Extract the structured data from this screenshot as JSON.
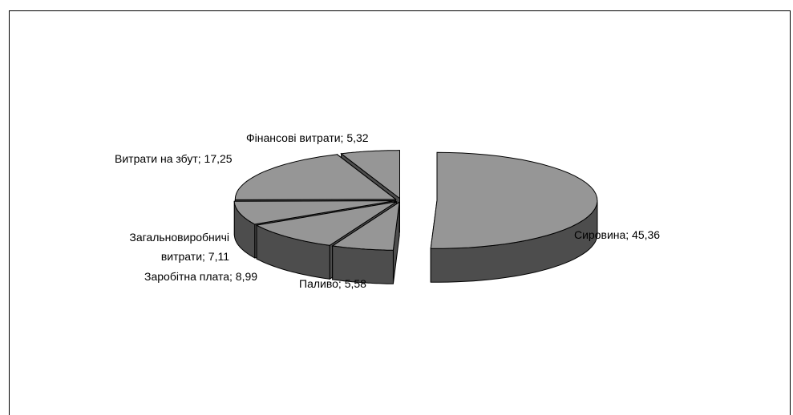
{
  "chart_data": {
    "type": "pie",
    "style": "3d-exploded",
    "legend": "none",
    "slices": [
      {
        "label": "Сировина; 45,36",
        "value": 45.36
      },
      {
        "label": "Паливо; 5,58",
        "value": 5.58
      },
      {
        "label": "Заробітна плата; 8,99",
        "value": 8.99
      },
      {
        "label_lines": [
          "Загальновиробничі",
          "витрати; 7,11"
        ],
        "value": 7.11
      },
      {
        "label": "Витрати на збут; 17,25",
        "value": 17.25
      },
      {
        "label": "Фінансові витрати; 5,32",
        "value": 5.32
      }
    ],
    "colors": {
      "top": "#969696",
      "side": "#4d4d4d",
      "edge": "#000000",
      "background": "#ffffff"
    }
  }
}
